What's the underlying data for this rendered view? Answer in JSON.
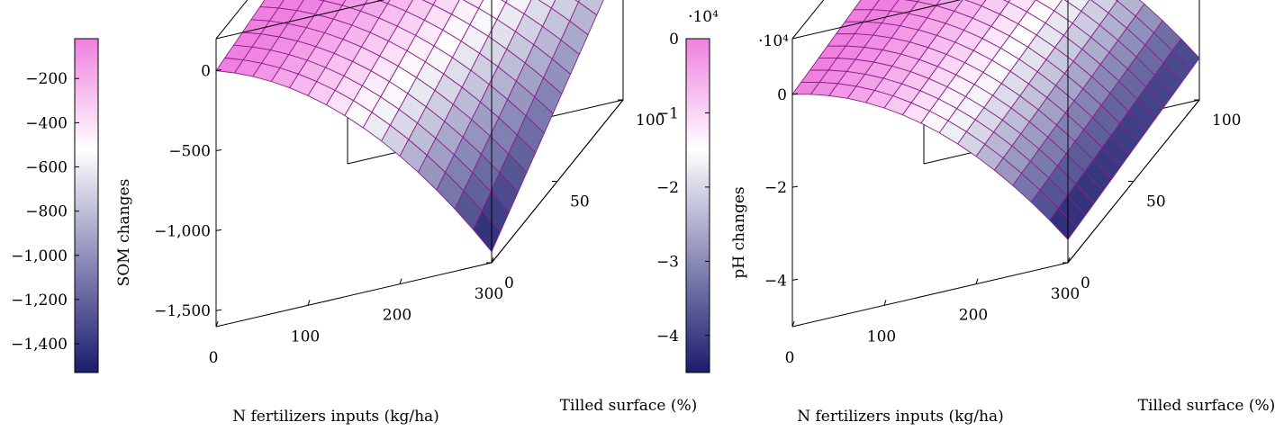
{
  "chart_data": [
    {
      "type": "surface3d",
      "colorbar": {
        "label": "SOM changes",
        "range": [
          -1530,
          -20
        ],
        "ticks": [
          -200,
          -400,
          -600,
          -800,
          -1000,
          -1200,
          -1400
        ],
        "tick_labels": [
          "−200",
          "−400",
          "−600",
          "−800",
          "−1,000",
          "−1,200",
          "−1,400"
        ]
      },
      "x": {
        "label": "N fertilizers inputs (kg/ha)",
        "range": [
          0,
          300
        ],
        "ticks": [
          0,
          100,
          200,
          300
        ],
        "tick_labels": [
          "0",
          "100",
          "200",
          "300"
        ]
      },
      "y": {
        "label": "Tilled surface (%)",
        "range": [
          0,
          100
        ],
        "ticks": [
          0,
          50,
          100
        ],
        "tick_labels": [
          "0",
          "50",
          "100"
        ]
      },
      "z": {
        "label": "",
        "range": [
          -1600,
          200
        ],
        "ticks": [
          0,
          -500,
          -1000,
          -1500
        ],
        "tick_labels": [
          "0",
          "−500",
          "−1,000",
          "−1,500"
        ]
      },
      "surface": {
        "grid": [
          16,
          16
        ],
        "corner_values": {
          "x0_y0": 0,
          "x300_y0": -1530,
          "x0_y100": 180,
          "x300_y100": -700
        }
      },
      "colormap": [
        "#1c1c6e",
        "#8a8ab8",
        "#ffffff",
        "#ef80e0"
      ]
    },
    {
      "type": "surface3d",
      "colorbar": {
        "label": "pH changes",
        "multiplier": "·10⁴",
        "range": [
          -4.5,
          0
        ],
        "ticks": [
          0,
          -1,
          -2,
          -3,
          -4
        ],
        "tick_labels": [
          "0",
          "−1",
          "−2",
          "−3",
          "−4"
        ]
      },
      "x": {
        "label": "N fertilizers inputs (kg/ha)",
        "range": [
          0,
          300
        ],
        "ticks": [
          0,
          100,
          200,
          300
        ],
        "tick_labels": [
          "0",
          "100",
          "200",
          "300"
        ]
      },
      "y": {
        "label": "Tilled surface (%)",
        "range": [
          0,
          100
        ],
        "ticks": [
          0,
          50,
          100
        ],
        "tick_labels": [
          "0",
          "50",
          "100"
        ]
      },
      "z": {
        "label": "",
        "multiplier": "·10⁴",
        "range": [
          -5,
          1.2
        ],
        "ticks": [
          0,
          -2,
          -4
        ],
        "tick_labels": [
          "0",
          "−2",
          "−4"
        ]
      },
      "surface": {
        "grid": [
          16,
          16
        ],
        "corner_values": {
          "x0_y0": 0,
          "x300_y0": -4.5,
          "x0_y100": 0.4,
          "x300_y100": -4.1
        }
      },
      "colormap": [
        "#1c1c6e",
        "#8a8ab8",
        "#ffffff",
        "#ef80e0"
      ]
    }
  ]
}
